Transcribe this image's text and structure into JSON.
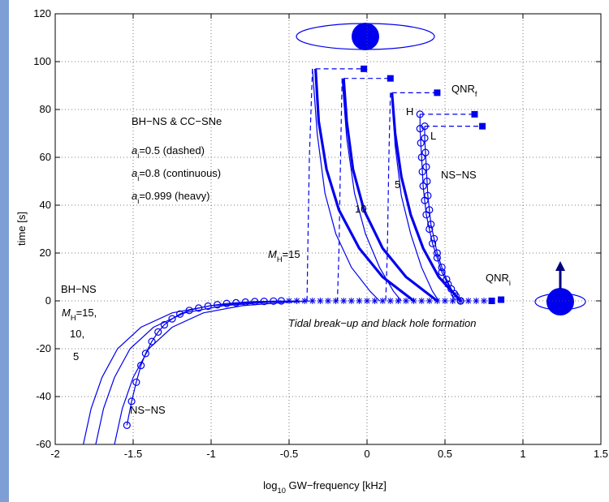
{
  "chart_data": {
    "type": "line",
    "color": "#0000ee",
    "grid": true,
    "x_label": {
      "text": "log",
      "sub": "10",
      "rest": " GW−frequency [kHz]"
    },
    "y_label": "time [s]",
    "xlim": [
      -2,
      1.5
    ],
    "ylim": [
      -60,
      120
    ],
    "xticks": [
      -2,
      -1.5,
      -1,
      -0.5,
      0,
      0.5,
      1,
      1.5
    ],
    "yticks": [
      -60,
      -40,
      -20,
      0,
      20,
      40,
      60,
      80,
      100,
      120
    ],
    "series": [
      {
        "style": "thin",
        "x": [
          -1.82,
          -1.77,
          -1.7,
          -1.6,
          -1.45,
          -1.25,
          -1.0,
          -0.7,
          -0.5
        ],
        "values": [
          -60,
          -45,
          -32,
          -20,
          -11,
          -5,
          -2,
          -0.5,
          0
        ]
      },
      {
        "style": "thin",
        "x": [
          -1.74,
          -1.69,
          -1.62,
          -1.52,
          -1.37,
          -1.17,
          -0.92,
          -0.62,
          -0.45
        ],
        "values": [
          -60,
          -45,
          -32,
          -20,
          -11,
          -5,
          -2,
          -0.5,
          0
        ]
      },
      {
        "style": "thin",
        "x": [
          -1.62,
          -1.57,
          -1.5,
          -1.4,
          -1.25,
          -1.05,
          -0.8,
          -0.5,
          -0.35
        ],
        "values": [
          -60,
          -45,
          -32,
          -20,
          -11,
          -5,
          -2,
          -0.5,
          0
        ]
      },
      {
        "style": "circles",
        "x": [
          -1.54,
          -1.51,
          -1.48,
          -1.45,
          -1.42,
          -1.38,
          -1.34,
          -1.3,
          -1.25,
          -1.2,
          -1.14,
          -1.08,
          -1.02,
          -0.96,
          -0.9,
          -0.84,
          -0.78,
          -0.72,
          -0.66,
          -0.6,
          -0.55
        ],
        "values": [
          -52,
          -42,
          -34,
          -27,
          -22,
          -17,
          -13,
          -10,
          -7.5,
          -5.5,
          -4,
          -3,
          -2.2,
          -1.6,
          -1.1,
          -0.8,
          -0.5,
          -0.3,
          -0.2,
          -0.1,
          0
        ]
      },
      {
        "style": "stars",
        "x": [
          -0.5,
          -0.45,
          -0.4,
          -0.35,
          -0.3,
          -0.25,
          -0.2,
          -0.15,
          -0.1,
          -0.05,
          0,
          0.05,
          0.1,
          0.15,
          0.2,
          0.25,
          0.3,
          0.35,
          0.4,
          0.45,
          0.5,
          0.55,
          0.6,
          0.65,
          0.7,
          0.75
        ],
        "values": [
          0,
          0,
          0,
          0,
          0,
          0,
          0,
          0,
          0,
          0,
          0,
          0,
          0,
          0,
          0,
          0,
          0,
          0,
          0,
          0,
          0,
          0,
          0,
          0,
          0,
          0
        ]
      },
      {
        "style": "dashed",
        "x": [
          -0.35,
          -0.37,
          -0.38,
          -0.385
        ],
        "values": [
          97,
          60,
          20,
          0
        ]
      },
      {
        "style": "thin",
        "x": [
          -0.35,
          -0.32,
          -0.27,
          -0.2,
          -0.1,
          0.02,
          0.08
        ],
        "values": [
          97,
          70,
          45,
          28,
          14,
          4,
          0
        ]
      },
      {
        "style": "heavy",
        "x": [
          -0.33,
          -0.31,
          -0.26,
          -0.18,
          -0.05,
          0.1,
          0.3
        ],
        "values": [
          97,
          75,
          55,
          38,
          22,
          10,
          0
        ]
      },
      {
        "style": "dashed",
        "x": [
          -0.16,
          -0.17,
          -0.18,
          -0.19
        ],
        "values": [
          93,
          60,
          20,
          0
        ]
      },
      {
        "style": "thin",
        "x": [
          -0.16,
          -0.13,
          -0.08,
          -0.01,
          0.08,
          0.17,
          0.22
        ],
        "values": [
          93,
          68,
          45,
          28,
          14,
          4,
          0
        ]
      },
      {
        "style": "heavy",
        "x": [
          -0.15,
          -0.13,
          -0.09,
          -0.02,
          0.1,
          0.25,
          0.45
        ],
        "values": [
          93,
          75,
          55,
          38,
          22,
          10,
          0
        ]
      },
      {
        "style": "dashed",
        "x": [
          0.15,
          0.14,
          0.13,
          0.12
        ],
        "values": [
          87,
          60,
          20,
          0
        ]
      },
      {
        "style": "thin",
        "x": [
          0.16,
          0.18,
          0.22,
          0.28,
          0.35,
          0.42,
          0.46
        ],
        "values": [
          87,
          65,
          44,
          28,
          14,
          4,
          0
        ]
      },
      {
        "style": "heavy",
        "x": [
          0.16,
          0.18,
          0.22,
          0.28,
          0.36,
          0.46,
          0.6
        ],
        "values": [
          87,
          70,
          52,
          36,
          22,
          10,
          0
        ]
      },
      {
        "style": "circles",
        "x": [
          0.34,
          0.34,
          0.345,
          0.35,
          0.355,
          0.36,
          0.37,
          0.38,
          0.4,
          0.42,
          0.45,
          0.48,
          0.52,
          0.56,
          0.6
        ],
        "values": [
          78,
          72,
          66,
          60,
          54,
          48,
          42,
          36,
          30,
          24,
          18,
          12,
          7,
          3,
          0
        ]
      },
      {
        "style": "circles",
        "x": [
          0.37,
          0.37,
          0.375,
          0.38,
          0.385,
          0.39,
          0.4,
          0.41,
          0.43,
          0.45,
          0.48,
          0.51,
          0.54,
          0.57,
          0.6
        ],
        "values": [
          73,
          68,
          62,
          56,
          50,
          44,
          38,
          32,
          26,
          20,
          14,
          9,
          5,
          2,
          0
        ]
      },
      {
        "style": "dashed",
        "x": [
          -0.33,
          -0.02
        ],
        "values": [
          97,
          97
        ]
      },
      {
        "style": "dashed",
        "x": [
          -0.15,
          0.15
        ],
        "values": [
          93,
          93
        ]
      },
      {
        "style": "dashed",
        "x": [
          0.16,
          0.45
        ],
        "values": [
          87,
          87
        ]
      },
      {
        "style": "dashed",
        "x": [
          0.34,
          0.69
        ],
        "values": [
          78,
          78
        ]
      },
      {
        "style": "dashed",
        "x": [
          0.37,
          0.74
        ],
        "values": [
          73,
          73
        ]
      },
      {
        "style": "squares",
        "x": [
          -0.02,
          0.15,
          0.45,
          0.69,
          0.74,
          0.8,
          0.86
        ],
        "values": [
          97,
          93,
          87,
          78,
          73,
          0,
          0.5
        ]
      }
    ],
    "annotations": [
      {
        "text": "BH−NS & CC−SNe"
      },
      {
        "text": "a",
        "italic": true,
        "sub": "i",
        "rest": "=0.5 (dashed)"
      },
      {
        "text": "a",
        "italic": true,
        "sub": "i",
        "rest": "=0.8 (continuous)"
      },
      {
        "text": "a",
        "italic": true,
        "sub": "i",
        "rest": "=0.999 (heavy)"
      },
      {
        "text": "10"
      },
      {
        "text": "5"
      },
      {
        "text": "M",
        "italic": true,
        "sub": "H",
        "rest": "=15"
      },
      {
        "text": "NS−NS"
      },
      {
        "text": "QNR",
        "sub": "f"
      },
      {
        "text": "H"
      },
      {
        "text": "L"
      },
      {
        "text": "QNR",
        "sub": "i"
      },
      {
        "text": "BH−NS"
      },
      {
        "text": "M",
        "italic": true,
        "sub": "H",
        "rest": "=15,"
      },
      {
        "text": "10,"
      },
      {
        "text": "5"
      },
      {
        "text": "NS−NS"
      },
      {
        "text": "Tidal break−up and black hole formation",
        "italic": true
      }
    ]
  }
}
